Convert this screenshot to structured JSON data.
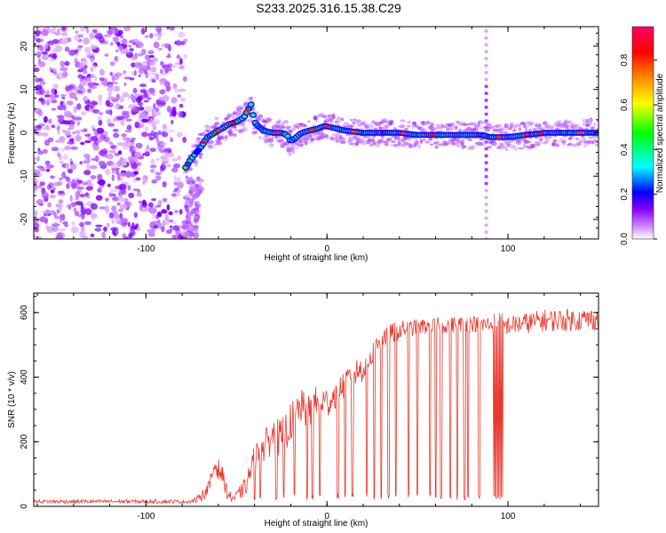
{
  "title": "S233.2025.316.15.38.C29",
  "chart_data": [
    {
      "type": "heatmap",
      "name": "spectrogram",
      "xlabel": "Height of straight line (km)",
      "ylabel": "Frequency (Hz)",
      "xlim": [
        -162,
        150
      ],
      "ylim": [
        -24.5,
        24.5
      ],
      "xticks": [
        -100,
        0,
        100
      ],
      "xtick_labels": [
        "-100",
        "0",
        "100"
      ],
      "yticks": [
        -20,
        -10,
        0,
        10,
        20
      ],
      "ytick_labels": [
        "-20",
        "-10",
        "0",
        "10",
        "20"
      ],
      "noise_region_x": [
        -162,
        -78
      ],
      "ridge": {
        "x": [
          -78,
          -75,
          -70,
          -66,
          -62,
          -58,
          -54,
          -50,
          -46,
          -44,
          -42,
          -40,
          -38,
          -35,
          -30,
          -25,
          -22,
          -20,
          -17,
          -14,
          -10,
          -5,
          -2,
          0,
          5,
          10,
          20,
          30,
          40,
          50,
          60,
          70,
          80,
          86,
          90,
          95,
          100,
          110,
          120,
          130,
          140,
          150
        ],
        "freq": [
          -8,
          -6,
          -3.5,
          -1,
          0,
          1,
          2,
          2.5,
          3.5,
          5,
          6.5,
          2.5,
          1.5,
          0.5,
          0,
          0,
          -0.5,
          -2,
          -1,
          0,
          0.5,
          1,
          1.5,
          1.5,
          1,
          0.5,
          0,
          0,
          0,
          -0.5,
          -0.5,
          -0.5,
          -0.5,
          -0.5,
          -1,
          -1,
          -1,
          -0.5,
          0,
          0,
          0,
          0
        ]
      },
      "vertical_artifact_x": 88,
      "colorbar": {
        "label": "Normalized spectral amplitude",
        "range": [
          0.0,
          0.95
        ],
        "ticks": [
          0.0,
          0.2,
          0.4,
          0.6,
          0.8
        ],
        "tick_labels": [
          "0.0",
          "0.2",
          "0.4",
          "0.6",
          "0.8"
        ],
        "colors": [
          "#ffffff",
          "#cc88ff",
          "#8800ff",
          "#0000ff",
          "#00ffff",
          "#00ff00",
          "#ffff00",
          "#ff8800",
          "#ff0000",
          "#ff0066"
        ]
      }
    },
    {
      "type": "line",
      "name": "snr",
      "xlabel": "Height of straight line (km)",
      "ylabel": "SNR (10 * v/v)",
      "xlim": [
        -162,
        150
      ],
      "ylim": [
        0,
        660
      ],
      "xticks": [
        -100,
        0,
        100
      ],
      "xtick_labels": [
        "-100",
        "0",
        "100"
      ],
      "yticks": [
        0,
        200,
        400,
        600
      ],
      "ytick_labels": [
        "0",
        "200",
        "400",
        "600"
      ],
      "color": "#e8392e",
      "envelope": {
        "x": [
          -162,
          -75,
          -70,
          -65,
          -62,
          -58,
          -55,
          -52,
          -45,
          -40,
          -35,
          -30,
          -25,
          -20,
          -15,
          -10,
          -5,
          0,
          5,
          10,
          15,
          20,
          25,
          30,
          40,
          50,
          60,
          80,
          100,
          120,
          150
        ],
        "base": [
          15,
          15,
          25,
          60,
          130,
          100,
          40,
          20,
          60,
          150,
          180,
          220,
          210,
          260,
          310,
          290,
          330,
          320,
          350,
          380,
          410,
          430,
          470,
          520,
          545,
          555,
          560,
          565,
          560,
          575,
          580
        ],
        "jitter": [
          6,
          6,
          15,
          25,
          35,
          30,
          20,
          12,
          30,
          45,
          50,
          55,
          60,
          60,
          55,
          55,
          50,
          50,
          45,
          45,
          45,
          45,
          40,
          35,
          30,
          25,
          25,
          25,
          30,
          35,
          35
        ]
      },
      "dropouts_x": [
        -70,
        -52,
        -40,
        -37,
        -28,
        -24,
        -18,
        -11,
        -8,
        -4,
        6,
        10,
        14,
        22,
        26,
        30,
        34,
        38,
        45,
        50,
        57,
        60,
        63,
        68,
        72,
        76,
        78,
        84
      ]
    }
  ]
}
